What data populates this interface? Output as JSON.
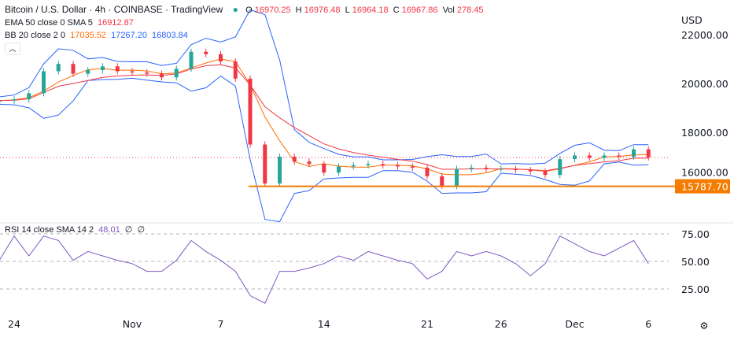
{
  "header": {
    "title": "Bitcoin / U.S. Dollar · 4h · COINBASE · TradingView",
    "status_color": "#26a69a",
    "ohlc": {
      "o_label": "O",
      "o": "16970.25",
      "h_label": "H",
      "h": "16976.48",
      "l_label": "L",
      "l": "16964.18",
      "c_label": "C",
      "c": "16967.86",
      "vol_label": "Vol",
      "vol": "278.45"
    }
  },
  "indicators": {
    "ema": {
      "label": "EMA 50 close 0 SMA 5",
      "value": "16912.87",
      "color": "#f23645"
    },
    "bb": {
      "label": "BB 20 close 2 0",
      "basis": "17035.52",
      "upper": "17267.20",
      "lower": "16803.84",
      "basis_color": "#ff6d00",
      "band_color": "#2962ff"
    },
    "rsi": {
      "label": "RSI 14 close SMA 14 2",
      "value": "48.01",
      "a": "∅",
      "b": "∅",
      "color": "#7e57c2"
    }
  },
  "chart_data": {
    "type": "candlestick",
    "currency": "USD",
    "x_ticks": [
      "24",
      "Nov",
      "7",
      "14",
      "21",
      "26",
      "Dec",
      "6"
    ],
    "x_tick_index": [
      1,
      9,
      15,
      22,
      29,
      34,
      39,
      44
    ],
    "y_ticks": [
      "22000.00",
      "20000.00",
      "18000.00",
      "16000.00"
    ],
    "y_tick_values": [
      22000,
      20000,
      18000,
      16000
    ],
    "closes": [
      19300,
      19350,
      19600,
      20500,
      20800,
      20400,
      20550,
      20700,
      20500,
      20450,
      20400,
      20250,
      20600,
      21300,
      21200,
      20900,
      20200,
      17500,
      15900,
      17000,
      16800,
      16700,
      16350,
      16600,
      16650,
      16700,
      16650,
      16600,
      16550,
      16200,
      15800,
      16500,
      16550,
      16500,
      16500,
      16450,
      16400,
      16250,
      16900,
      17050,
      16950,
      17050,
      17000,
      17300,
      16970
    ],
    "support_level": {
      "value": 15787.7,
      "label": "15787.70",
      "color": "#f57c00"
    },
    "current_price": 16967.86,
    "rsi": {
      "values": [
        51,
        73,
        55,
        73,
        69,
        51,
        59,
        55,
        51,
        48,
        41,
        41,
        51,
        69,
        59,
        51,
        41,
        19,
        12,
        41,
        41,
        44,
        48,
        55,
        51,
        59,
        55,
        51,
        48,
        34,
        41,
        59,
        55,
        59,
        55,
        48,
        37,
        48,
        73,
        66,
        59,
        55,
        62,
        69,
        48
      ],
      "y_ticks": [
        "75.00",
        "50.00",
        "25.00"
      ],
      "y_tick_values": [
        75,
        50,
        25
      ]
    },
    "up_color": "#26a69a",
    "down_color": "#f23645"
  },
  "footer": {
    "settings_icon": "gear-icon"
  }
}
